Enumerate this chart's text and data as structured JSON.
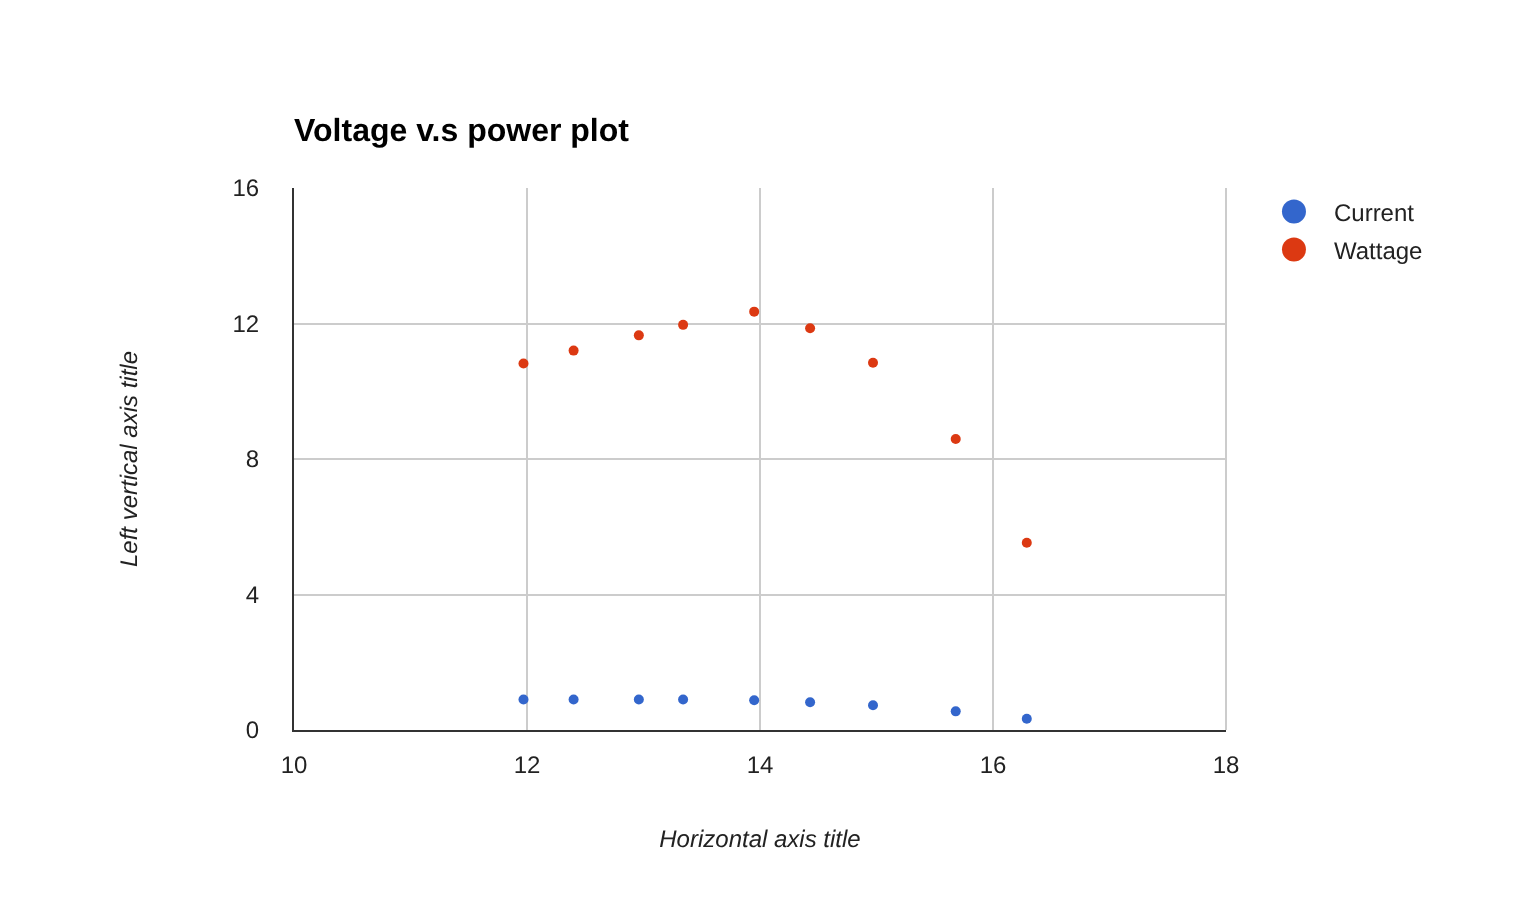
{
  "chart_data": {
    "type": "scatter",
    "title": "Voltage v.s power plot",
    "xlabel": "Horizontal axis title",
    "ylabel": "Left vertical axis title",
    "x": [
      11.97,
      12.4,
      12.96,
      13.34,
      13.95,
      14.43,
      14.97,
      15.68,
      16.29
    ],
    "series": [
      {
        "name": "Current",
        "color": "#3366cc",
        "values": [
          0.9,
          0.9,
          0.9,
          0.9,
          0.88,
          0.82,
          0.73,
          0.55,
          0.33
        ]
      },
      {
        "name": "Wattage",
        "color": "#dc3912",
        "values": [
          10.82,
          11.2,
          11.65,
          11.96,
          12.35,
          11.86,
          10.84,
          8.59,
          5.53
        ]
      }
    ],
    "xlim": [
      10,
      18
    ],
    "xticks": [
      10,
      12,
      14,
      16,
      18
    ],
    "ylim": [
      0,
      16
    ],
    "yticks": [
      0,
      4,
      8,
      12,
      16
    ],
    "grid": true,
    "legend": "top right",
    "marker": "circle"
  }
}
